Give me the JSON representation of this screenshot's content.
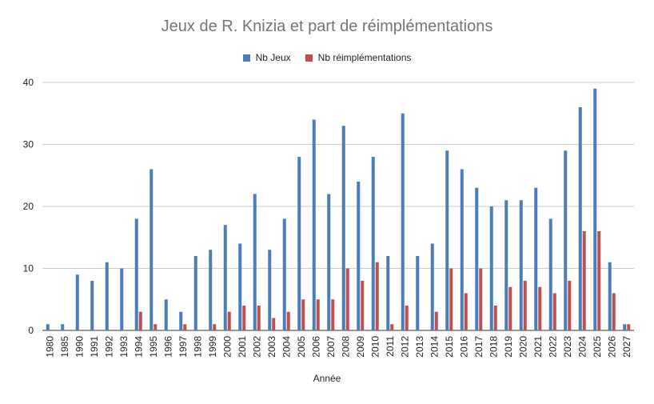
{
  "chart_data": {
    "type": "bar",
    "title": "Jeux de R. Knizia et part de réimplémentations",
    "xlabel": "Année",
    "ylabel": "",
    "ylim": [
      0,
      40
    ],
    "yticks": [
      0,
      10,
      20,
      30,
      40
    ],
    "grid": true,
    "legend_position": "top",
    "categories": [
      "1980",
      "1985",
      "1990",
      "1991",
      "1992",
      "1993",
      "1994",
      "1995",
      "1996",
      "1997",
      "1998",
      "1999",
      "2000",
      "2001",
      "2002",
      "2003",
      "2004",
      "2005",
      "2006",
      "2007",
      "2008",
      "2009",
      "2010",
      "2011",
      "2012",
      "2013",
      "2014",
      "2015",
      "2016",
      "2017",
      "2018",
      "2019",
      "2020",
      "2021",
      "2022",
      "2023",
      "2024",
      "2025",
      "2026",
      "2027"
    ],
    "series": [
      {
        "name": "Nb Jeux",
        "color": "#4a7ebb",
        "values": [
          1,
          1,
          9,
          8,
          11,
          10,
          18,
          26,
          5,
          3,
          12,
          13,
          17,
          14,
          22,
          13,
          18,
          28,
          34,
          22,
          33,
          24,
          28,
          12,
          35,
          12,
          14,
          29,
          26,
          23,
          20,
          21,
          21,
          23,
          18,
          29,
          36,
          39,
          11,
          1
        ]
      },
      {
        "name": "Nb réimplémentations",
        "color": "#c0504d",
        "values": [
          0,
          0,
          0,
          0,
          0,
          0,
          3,
          1,
          0,
          1,
          0,
          1,
          3,
          4,
          4,
          2,
          3,
          5,
          5,
          5,
          10,
          8,
          11,
          1,
          4,
          0,
          3,
          10,
          6,
          10,
          4,
          7,
          8,
          7,
          6,
          8,
          16,
          16,
          6,
          1
        ]
      }
    ]
  }
}
